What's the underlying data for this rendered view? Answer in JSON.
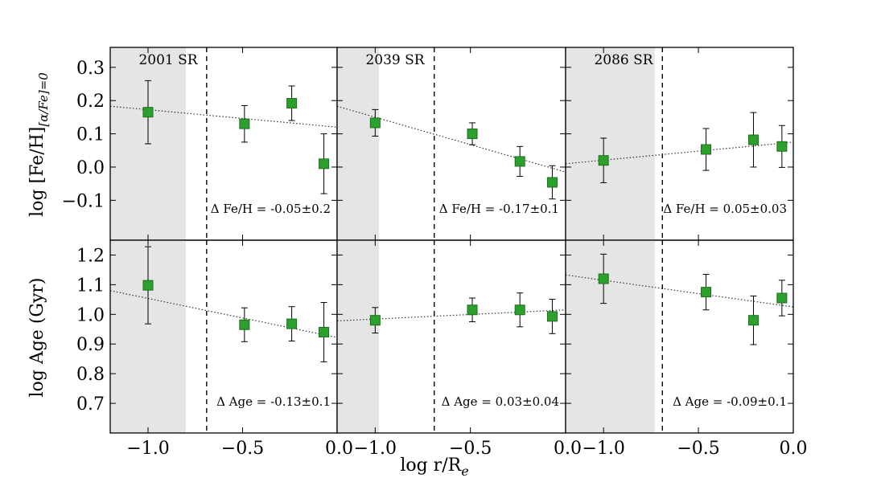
{
  "chart_data": {
    "type": "scatter",
    "layout": "2 rows x 3 columns, shared x axis",
    "xlabel": "log r/R",
    "xlabel_subscript": "e",
    "xlim": [
      -1.2,
      0.0
    ],
    "xticks": [
      -1.0,
      -0.5,
      0.0
    ],
    "xtick_labels": [
      "−1.0",
      "−0.5",
      "0.0"
    ],
    "rows": [
      {
        "key": "feh",
        "ylabel_main": "log [Fe/H]",
        "ylabel_sub": "[α/Fe]=0",
        "ylim": [
          -0.22,
          0.36
        ],
        "yticks": [
          -0.1,
          0.0,
          0.1,
          0.2,
          0.3
        ],
        "ytick_labels": [
          "−0.1",
          "0.0",
          "0.1",
          "0.2",
          "0.3"
        ]
      },
      {
        "key": "age",
        "ylabel_main": "log Age (Gyr)",
        "ylim": [
          0.6,
          1.25
        ],
        "yticks": [
          0.7,
          0.8,
          0.9,
          1.0,
          1.1,
          1.2
        ],
        "ytick_labels": [
          "0.7",
          "0.8",
          "0.9",
          "1.0",
          "1.1",
          "1.2"
        ]
      }
    ],
    "panels": [
      {
        "title": "2001 SR",
        "shade_x": [
          -1.2,
          -0.8
        ],
        "dashed_x": -0.69,
        "feh": {
          "x": [
            -1.0,
            -0.49,
            -0.24,
            -0.07
          ],
          "y": [
            0.165,
            0.13,
            0.192,
            0.01
          ],
          "err": [
            0.095,
            0.055,
            0.052,
            0.09
          ],
          "fit": [
            [
              -1.2,
              0.183
            ],
            [
              0.0,
              0.12
            ]
          ],
          "annotation": "Δ Fe/H = -0.05±0.2"
        },
        "age": {
          "x": [
            -1.0,
            -0.49,
            -0.24,
            -0.07
          ],
          "y": [
            1.098,
            0.965,
            0.968,
            0.94
          ],
          "err": [
            0.13,
            0.057,
            0.058,
            0.1
          ],
          "fit": [
            [
              -1.2,
              1.08
            ],
            [
              0.0,
              0.922
            ]
          ],
          "annotation": "Δ Age = -0.13±0.1"
        }
      },
      {
        "title": "2039 SR",
        "shade_x": [
          -1.2,
          -0.98
        ],
        "dashed_x": -0.69,
        "feh": {
          "x": [
            -1.0,
            -0.49,
            -0.24,
            -0.07
          ],
          "y": [
            0.133,
            0.1,
            0.017,
            -0.046
          ],
          "err": [
            0.04,
            0.033,
            0.045,
            0.05
          ],
          "fit": [
            [
              -1.2,
              0.183
            ],
            [
              0.0,
              -0.015
            ]
          ],
          "annotation": "Δ Fe/H = -0.17±0.1"
        },
        "age": {
          "x": [
            -1.0,
            -0.49,
            -0.24,
            -0.07
          ],
          "y": [
            0.98,
            1.015,
            1.015,
            0.993
          ],
          "err": [
            0.043,
            0.04,
            0.057,
            0.058
          ],
          "fit": [
            [
              -1.2,
              0.978
            ],
            [
              0.0,
              1.015
            ]
          ],
          "annotation": "Δ Age = 0.03±0.04"
        }
      },
      {
        "title": "2086 SR",
        "shade_x": [
          -1.2,
          -0.73
        ],
        "dashed_x": -0.69,
        "feh": {
          "x": [
            -1.0,
            -0.46,
            -0.21,
            -0.06
          ],
          "y": [
            0.02,
            0.053,
            0.082,
            0.062
          ],
          "err": [
            0.067,
            0.063,
            0.082,
            0.063
          ],
          "fit": [
            [
              -1.2,
              0.01
            ],
            [
              0.0,
              0.075
            ]
          ],
          "annotation": "Δ Fe/H = 0.05±0.03"
        },
        "age": {
          "x": [
            -1.0,
            -0.46,
            -0.21,
            -0.06
          ],
          "y": [
            1.12,
            1.075,
            0.98,
            1.055
          ],
          "err": [
            0.083,
            0.06,
            0.082,
            0.06
          ],
          "fit": [
            [
              -1.2,
              1.133
            ],
            [
              0.0,
              1.025
            ]
          ],
          "annotation": "Δ Age = -0.09±0.1"
        }
      }
    ]
  },
  "colors": {
    "marker_fill": "#2ca02c",
    "marker_edge": "#1e6e1e",
    "shade": "#e5e5e5",
    "axis": "#000000"
  }
}
